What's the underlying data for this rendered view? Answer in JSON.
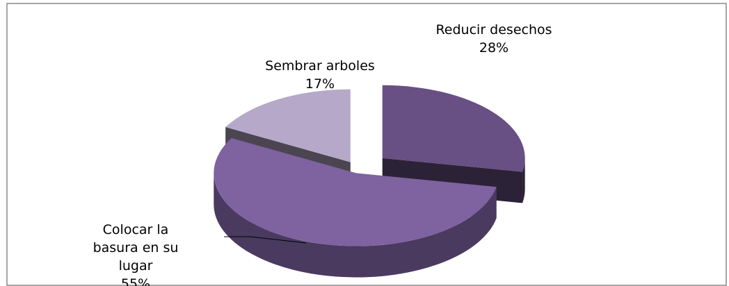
{
  "chart_data": {
    "type": "pie",
    "categories": [
      "Reducir desechos",
      "Colocar la basura en su lugar",
      "Sembrar arboles"
    ],
    "values": [
      28,
      55,
      17
    ],
    "value_labels": [
      "28%",
      "55%",
      "17%"
    ],
    "colors": [
      "#684f84",
      "#7f62a0",
      "#b5a8c8"
    ],
    "side_colors": [
      "#2c2238",
      "#4a3a60",
      "#4a4550"
    ]
  }
}
